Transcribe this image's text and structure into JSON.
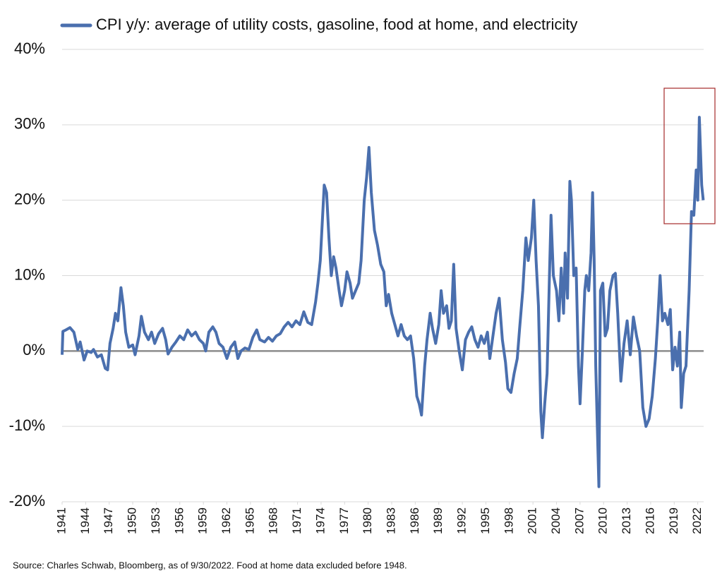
{
  "chart_data": {
    "type": "line",
    "source": "Source: Charles Schwab, Bloomberg, as of 9/30/2022.  Food at home data excluded before 1948.",
    "x": [
      1941.0,
      1941.1,
      1941.5,
      1942,
      1942.5,
      1943,
      1943.3,
      1943.8,
      1944.2,
      1944.7,
      1945,
      1945.5,
      1946,
      1946.5,
      1946.8,
      1947.1,
      1947.5,
      1947.8,
      1948.1,
      1948.5,
      1948.8,
      1949.1,
      1949.5,
      1950,
      1950.3,
      1950.8,
      1951.1,
      1951.5,
      1952,
      1952.4,
      1952.8,
      1953.3,
      1953.8,
      1954.2,
      1954.5,
      1955,
      1955.5,
      1956,
      1956.5,
      1957,
      1957.5,
      1958,
      1958.5,
      1959,
      1959.3,
      1959.7,
      1960.2,
      1960.6,
      1961,
      1961.5,
      1962,
      1962.5,
      1963,
      1963.4,
      1963.8,
      1964.3,
      1964.8,
      1965.3,
      1965.8,
      1966.2,
      1966.8,
      1967.3,
      1967.8,
      1968.3,
      1968.8,
      1969.3,
      1969.8,
      1970.3,
      1970.8,
      1971.3,
      1971.8,
      1972.3,
      1972.8,
      1973.3,
      1973.6,
      1973.9,
      1974.2,
      1974.4,
      1974.7,
      1975,
      1975.3,
      1975.6,
      1975.9,
      1976.3,
      1976.6,
      1977,
      1977.3,
      1977.7,
      1978,
      1978.4,
      1978.8,
      1979.1,
      1979.5,
      1979.8,
      1980.1,
      1980.4,
      1980.8,
      1981.2,
      1981.6,
      1982,
      1982.3,
      1982.6,
      1983,
      1983.4,
      1983.8,
      1984.2,
      1984.6,
      1985,
      1985.4,
      1985.8,
      1986.2,
      1986.5,
      1986.8,
      1987.2,
      1987.5,
      1987.9,
      1988.2,
      1988.6,
      1989,
      1989.3,
      1989.6,
      1990,
      1990.3,
      1990.6,
      1990.9,
      1991.2,
      1991.6,
      1992,
      1992.4,
      1992.8,
      1993.2,
      1993.6,
      1994,
      1994.4,
      1994.8,
      1995.2,
      1995.5,
      1995.9,
      1996.3,
      1996.7,
      1997.1,
      1997.5,
      1997.8,
      1998.2,
      1998.6,
      1999,
      1999.3,
      1999.7,
      2000.1,
      2000.4,
      2000.8,
      2001.1,
      2001.4,
      2001.7,
      2002,
      2002.2,
      2002.5,
      2002.8,
      2003.1,
      2003.3,
      2003.6,
      2004,
      2004.3,
      2004.6,
      2004.9,
      2005.1,
      2005.4,
      2005.7,
      2005.9,
      2006.2,
      2006.5,
      2006.8,
      2007,
      2007.3,
      2007.6,
      2007.8,
      2008.1,
      2008.4,
      2008.6,
      2008.8,
      2009,
      2009.2,
      2009.4,
      2009.6,
      2009.9,
      2010.2,
      2010.5,
      2010.8,
      2011.2,
      2011.5,
      2011.8,
      2012.2,
      2012.6,
      2013,
      2013.4,
      2013.8,
      2014.2,
      2014.6,
      2015,
      2015.4,
      2015.8,
      2016.2,
      2016.6,
      2016.9,
      2017.2,
      2017.5,
      2017.8,
      2018.2,
      2018.5,
      2018.8,
      2019.1,
      2019.4,
      2019.7,
      2019.9,
      2020.2,
      2020.5,
      2020.9,
      2021.2,
      2021.5,
      2021.8,
      2022.0,
      2022.2,
      2022.5,
      2022.7
    ],
    "series": [
      {
        "name": "CPI y/y: average of utility costs, gasoline, food at home, and electricity",
        "color": "#4a6fae",
        "values": [
          -0.5,
          2.6,
          2.8,
          3.1,
          2.5,
          0.2,
          1.2,
          -1.2,
          0,
          -0.2,
          0.2,
          -0.8,
          -0.5,
          -2.3,
          -2.5,
          1,
          3,
          5,
          4,
          8.4,
          6,
          2.5,
          0.5,
          0.8,
          -0.5,
          2,
          4.6,
          2.5,
          1.5,
          2.5,
          1,
          2.3,
          3,
          1.5,
          -0.4,
          0.5,
          1.2,
          2,
          1.5,
          2.8,
          2,
          2.5,
          1.5,
          1,
          0,
          2.5,
          3.2,
          2.5,
          1,
          0.5,
          -1,
          0.5,
          1.2,
          -1,
          0,
          0.4,
          0.2,
          1.8,
          2.8,
          1.5,
          1.2,
          1.8,
          1.3,
          2,
          2.3,
          3.2,
          3.8,
          3.2,
          4,
          3.5,
          5.2,
          3.8,
          3.5,
          6.5,
          9,
          12,
          18,
          22,
          21,
          15,
          10,
          12.5,
          11,
          8,
          6,
          8,
          10.5,
          9,
          7,
          8,
          9,
          12,
          20,
          23,
          27,
          21,
          16,
          14,
          11.5,
          10.5,
          6,
          7.5,
          5,
          3.5,
          2,
          3.5,
          2,
          1.5,
          2,
          -1,
          -6,
          -7,
          -8.5,
          -2,
          1.5,
          5,
          3,
          1,
          3.5,
          8,
          5,
          6,
          3,
          4,
          11.5,
          3,
          0,
          -2.5,
          1.5,
          2.5,
          3.2,
          1.5,
          0.5,
          2,
          1,
          2.5,
          -1,
          2,
          5,
          7,
          1.5,
          -1.5,
          -5,
          -5.5,
          -3,
          -1,
          3,
          8,
          15,
          12,
          15,
          20,
          12,
          6,
          -8,
          -11.5,
          -7,
          -3,
          10,
          18,
          10,
          8,
          4,
          11,
          5,
          13,
          7,
          22.5,
          20,
          10,
          11,
          -2,
          -7,
          0,
          8,
          10,
          8,
          13,
          21,
          12,
          -2,
          -10,
          -18,
          8,
          9,
          2,
          3,
          8,
          10,
          10.3,
          5,
          -4,
          1,
          4,
          -0.5,
          4.5,
          2,
          0,
          -7.5,
          -10,
          -9,
          -6,
          -1,
          4,
          10,
          4,
          5,
          3.5,
          5.5,
          -2.5,
          0.5,
          -2,
          2.5,
          -7.5,
          -3,
          -2,
          8,
          18.5,
          18,
          24,
          20,
          31,
          22,
          20
        ]
      }
    ],
    "xlim": [
      1941,
      2022.75
    ],
    "xticks": [
      1941,
      1944,
      1947,
      1950,
      1953,
      1956,
      1959,
      1962,
      1965,
      1968,
      1971,
      1974,
      1977,
      1980,
      1983,
      1986,
      1989,
      1992,
      1995,
      1998,
      2001,
      2004,
      2007,
      2010,
      2013,
      2016,
      2019,
      2022
    ],
    "ylim": [
      -20,
      40
    ],
    "yticks": [
      {
        "value": -20,
        "label": "-20%"
      },
      {
        "value": -10,
        "label": "-10%"
      },
      {
        "value": 0,
        "label": "0%"
      },
      {
        "value": 10,
        "label": "10%"
      },
      {
        "value": 20,
        "label": "20%"
      },
      {
        "value": 30,
        "label": "30%"
      },
      {
        "value": 40,
        "label": "40%"
      }
    ],
    "grid": true
  }
}
